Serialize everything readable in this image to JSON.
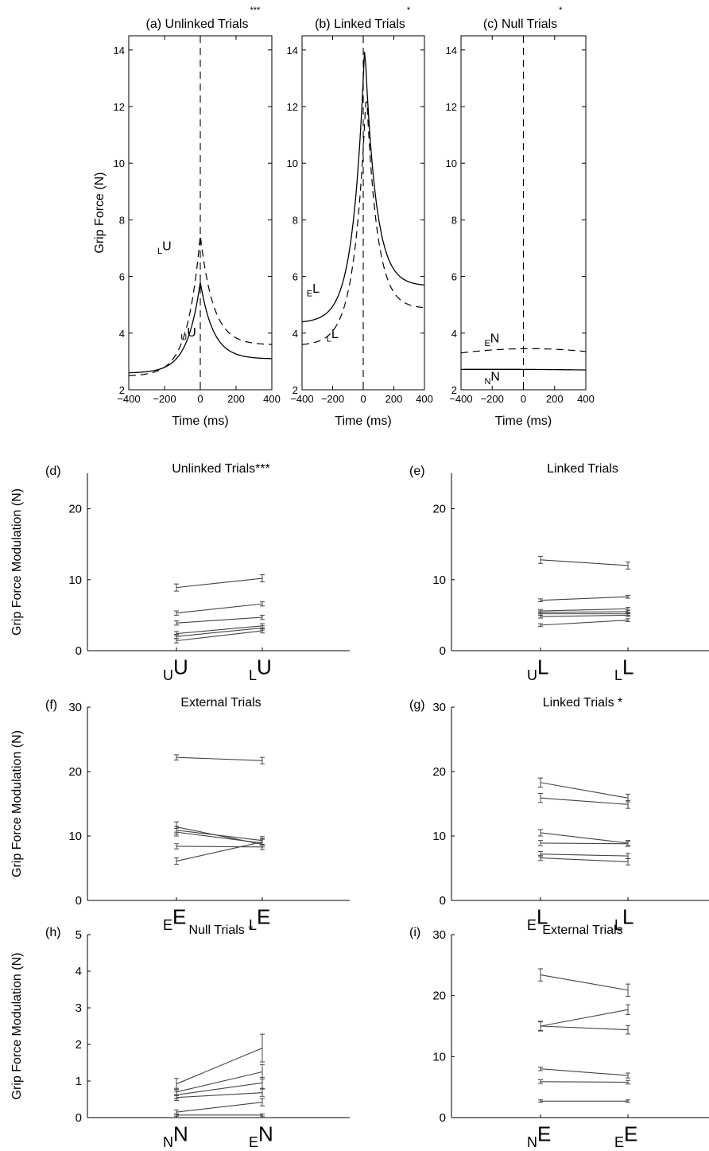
{
  "chart_data": [
    {
      "id": "a",
      "type": "line",
      "panel_label": "(a)",
      "title": "Unlinked Trials",
      "significance": "***",
      "xlabel": "Time (ms)",
      "ylabel": "Grip Force (N)",
      "xlim": [
        -400,
        400
      ],
      "ylim": [
        2,
        14.5
      ],
      "xticks": [
        -400,
        -200,
        0,
        200,
        400
      ],
      "yticks": [
        2,
        4,
        6,
        8,
        10,
        12,
        14
      ],
      "series": [
        {
          "name": "uU",
          "style": "solid",
          "peak": 5.8,
          "peak_t": 0,
          "base_left": 2.6,
          "base_right": 3.1
        },
        {
          "name": "LU",
          "style": "dashed",
          "peak": 7.45,
          "peak_t": 0,
          "base_left": 2.5,
          "base_right": 3.6
        }
      ],
      "curve_labels": [
        {
          "sub": "U",
          "main": "U",
          "t": -110,
          "f": 3.75
        },
        {
          "sub": "L",
          "main": "U",
          "t": -240,
          "f": 6.8
        }
      ]
    },
    {
      "id": "b",
      "type": "line",
      "panel_label": "(b)",
      "title": "Linked Trials",
      "significance": "*",
      "xlabel": "Time (ms)",
      "ylabel": "",
      "xlim": [
        -400,
        400
      ],
      "ylim": [
        2,
        14.5
      ],
      "xticks": [
        -400,
        -200,
        0,
        200,
        400
      ],
      "yticks": [
        2,
        4,
        6,
        8,
        10,
        12,
        14
      ],
      "series": [
        {
          "name": "EL",
          "style": "solid",
          "peak": 14.2,
          "peak_t": 10,
          "base_left": 4.4,
          "base_right": 5.7
        },
        {
          "name": "LL",
          "style": "dashed",
          "peak": 12.6,
          "peak_t": 20,
          "base_left": 3.6,
          "base_right": 4.9
        }
      ],
      "curve_labels": [
        {
          "sub": "E",
          "main": "L",
          "t": -370,
          "f": 5.3
        },
        {
          "sub": "L",
          "main": "L",
          "t": -240,
          "f": 3.7
        }
      ]
    },
    {
      "id": "c",
      "type": "line",
      "panel_label": "(c)",
      "title": "Null Trials",
      "significance": "*",
      "xlabel": "Time (ms)",
      "ylabel": "",
      "xlim": [
        -400,
        400
      ],
      "ylim": [
        2,
        14.5
      ],
      "xticks": [
        -400,
        -200,
        0,
        200,
        400
      ],
      "yticks": [
        2,
        4,
        6,
        8,
        10,
        12,
        14
      ],
      "series": [
        {
          "name": "NN",
          "style": "solid",
          "flat": [
            2.72,
            2.72,
            2.7
          ]
        },
        {
          "name": "EN",
          "style": "dashed",
          "flat": [
            3.3,
            3.45,
            3.35
          ]
        }
      ],
      "curve_labels": [
        {
          "sub": "E",
          "main": "N",
          "t": -250,
          "f": 3.55
        },
        {
          "sub": "N",
          "main": "N",
          "t": -250,
          "f": 2.2
        }
      ]
    },
    {
      "id": "d",
      "type": "line",
      "panel_label": "(d)",
      "title": "Unlinked Trials***",
      "ylabel": "Grip Force Modulation (N)",
      "ylim": [
        0,
        25
      ],
      "yticks": [
        0,
        10,
        20
      ],
      "categories": [
        {
          "sub": "U",
          "main": "U"
        },
        {
          "sub": "L",
          "main": "U"
        }
      ],
      "subjects": [
        [
          8.9,
          10.2
        ],
        [
          5.3,
          6.6
        ],
        [
          3.9,
          4.7
        ],
        [
          2.4,
          3.5
        ],
        [
          2.0,
          3.2
        ],
        [
          1.4,
          2.8
        ]
      ],
      "errors": [
        [
          0.5,
          0.5
        ],
        [
          0.3,
          0.3
        ],
        [
          0.3,
          0.3
        ],
        [
          0.3,
          0.3
        ],
        [
          0.3,
          0.3
        ],
        [
          0.3,
          0.3
        ]
      ]
    },
    {
      "id": "e",
      "type": "line",
      "panel_label": "(e)",
      "title": "Linked Trials",
      "ylabel": "",
      "ylim": [
        0,
        25
      ],
      "yticks": [
        0,
        10,
        20
      ],
      "categories": [
        {
          "sub": "U",
          "main": "L"
        },
        {
          "sub": "L",
          "main": "L"
        }
      ],
      "subjects": [
        [
          12.8,
          12.0
        ],
        [
          7.1,
          7.6
        ],
        [
          5.6,
          5.9
        ],
        [
          5.4,
          5.5
        ],
        [
          5.2,
          5.2
        ],
        [
          4.8,
          5.0
        ],
        [
          3.6,
          4.3
        ]
      ],
      "errors": [
        [
          0.5,
          0.5
        ],
        [
          0.2,
          0.2
        ],
        [
          0.2,
          0.2
        ],
        [
          0.2,
          0.2
        ],
        [
          0.2,
          0.2
        ],
        [
          0.2,
          0.2
        ],
        [
          0.2,
          0.2
        ]
      ]
    },
    {
      "id": "f",
      "type": "line",
      "panel_label": "(f)",
      "title": "External Trials",
      "ylabel": "Grip Force Modulation (N)",
      "ylim": [
        0,
        30
      ],
      "yticks": [
        0,
        10,
        20,
        30
      ],
      "categories": [
        {
          "sub": "E",
          "main": "E"
        },
        {
          "sub": "L",
          "main": "E"
        }
      ],
      "subjects": [
        [
          22.2,
          21.7
        ],
        [
          11.4,
          8.7
        ],
        [
          10.9,
          9.3
        ],
        [
          10.6,
          8.9
        ],
        [
          8.4,
          8.3
        ],
        [
          6.1,
          9.1
        ]
      ],
      "errors": [
        [
          0.4,
          0.5
        ],
        [
          0.8,
          0.8
        ],
        [
          0.6,
          0.6
        ],
        [
          0.6,
          0.6
        ],
        [
          0.4,
          0.4
        ],
        [
          0.5,
          0.5
        ]
      ]
    },
    {
      "id": "g",
      "type": "line",
      "panel_label": "(g)",
      "title": "Linked Trials *",
      "ylabel": "",
      "ylim": [
        0,
        30
      ],
      "yticks": [
        0,
        10,
        20,
        30
      ],
      "categories": [
        {
          "sub": "E",
          "main": "L"
        },
        {
          "sub": "L",
          "main": "L"
        }
      ],
      "subjects": [
        [
          18.3,
          15.9
        ],
        [
          15.9,
          14.9
        ],
        [
          10.5,
          8.9
        ],
        [
          8.9,
          8.8
        ],
        [
          7.2,
          6.9
        ],
        [
          6.6,
          6.0
        ]
      ],
      "errors": [
        [
          0.7,
          0.6
        ],
        [
          0.7,
          0.6
        ],
        [
          0.5,
          0.4
        ],
        [
          0.4,
          0.4
        ],
        [
          0.4,
          0.4
        ],
        [
          0.4,
          0.5
        ]
      ]
    },
    {
      "id": "h",
      "type": "line",
      "panel_label": "(h)",
      "title": "Null Trials  *",
      "ylabel": "Grip Force Modulation (N)",
      "ylim": [
        0,
        5
      ],
      "yticks": [
        0,
        1,
        2,
        3,
        4,
        5
      ],
      "categories": [
        {
          "sub": "N",
          "main": "N"
        },
        {
          "sub": "E",
          "main": "N"
        }
      ],
      "subjects": [
        [
          0.92,
          1.9
        ],
        [
          0.7,
          1.25
        ],
        [
          0.62,
          0.95
        ],
        [
          0.55,
          0.68
        ],
        [
          0.15,
          0.42
        ],
        [
          0.07,
          0.07
        ]
      ],
      "errors": [
        [
          0.15,
          0.38
        ],
        [
          0.1,
          0.2
        ],
        [
          0.1,
          0.15
        ],
        [
          0.08,
          0.1
        ],
        [
          0.06,
          0.1
        ],
        [
          0.03,
          0.03
        ]
      ]
    },
    {
      "id": "i",
      "type": "line",
      "panel_label": "(i)",
      "title": "External Trials",
      "ylabel": "",
      "ylim": [
        0,
        30
      ],
      "yticks": [
        0,
        10,
        20,
        30
      ],
      "categories": [
        {
          "sub": "N",
          "main": "E"
        },
        {
          "sub": "E",
          "main": "E"
        }
      ],
      "subjects": [
        [
          23.4,
          20.9
        ],
        [
          15.0,
          17.7
        ],
        [
          15.0,
          14.4
        ],
        [
          8.0,
          6.9
        ],
        [
          5.9,
          5.8
        ],
        [
          2.7,
          2.7
        ]
      ],
      "errors": [
        [
          1.0,
          1.0
        ],
        [
          0.8,
          0.8
        ],
        [
          0.7,
          0.7
        ],
        [
          0.3,
          0.4
        ],
        [
          0.3,
          0.3
        ],
        [
          0.2,
          0.2
        ]
      ]
    }
  ]
}
